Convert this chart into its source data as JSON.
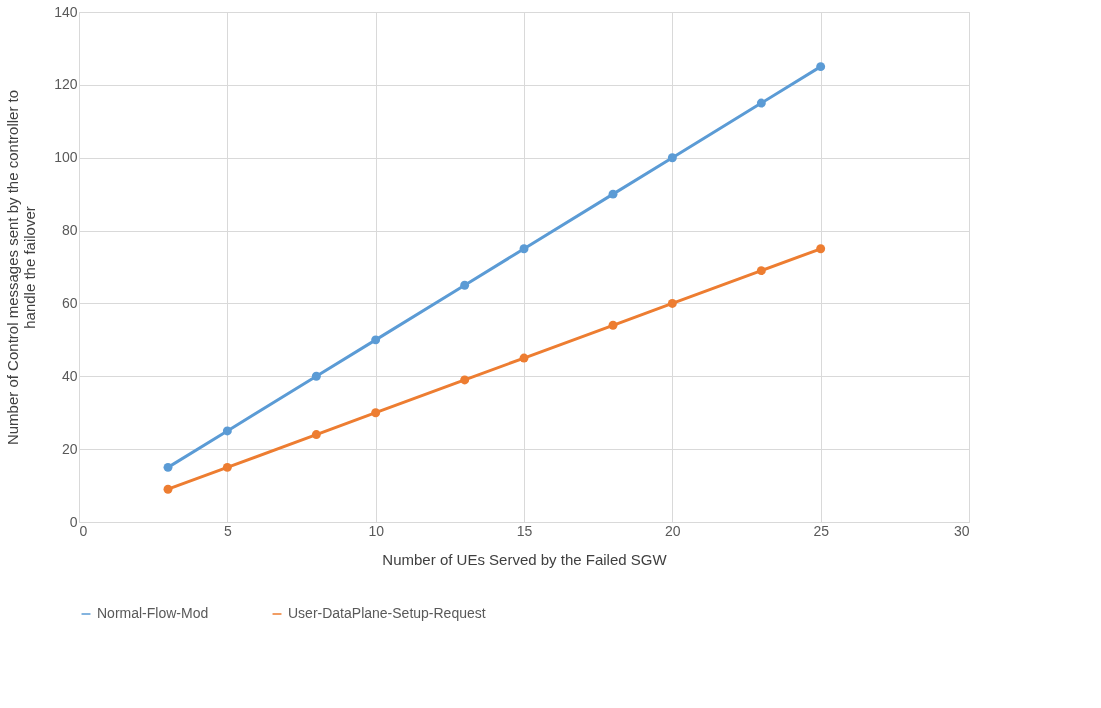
{
  "chart_data": {
    "type": "line",
    "xlabel": "Number  of UEs Served by the Failed SGW",
    "ylabel": "Number  of Control messages sent by the controller to\nhandle the failover",
    "x": [
      3,
      5,
      8,
      10,
      13,
      15,
      18,
      20,
      23,
      25
    ],
    "series": [
      {
        "name": "Normal-Flow-Mod",
        "color": "#5b9bd5",
        "values": [
          15,
          25,
          40,
          50,
          65,
          75,
          90,
          100,
          115,
          125
        ]
      },
      {
        "name": "User-DataPlane-Setup-Request",
        "color": "#ed7d31",
        "values": [
          9,
          15,
          24,
          30,
          39,
          45,
          54,
          60,
          69,
          75
        ]
      }
    ],
    "xlim": [
      0,
      30
    ],
    "xticks": [
      0,
      5,
      10,
      15,
      20,
      25,
      30
    ],
    "ylim": [
      0,
      140
    ],
    "yticks": [
      0,
      20,
      40,
      60,
      80,
      100,
      120,
      140
    ],
    "grid": true,
    "legend": "bottom",
    "marker": "circle",
    "line_style": "solid"
  }
}
